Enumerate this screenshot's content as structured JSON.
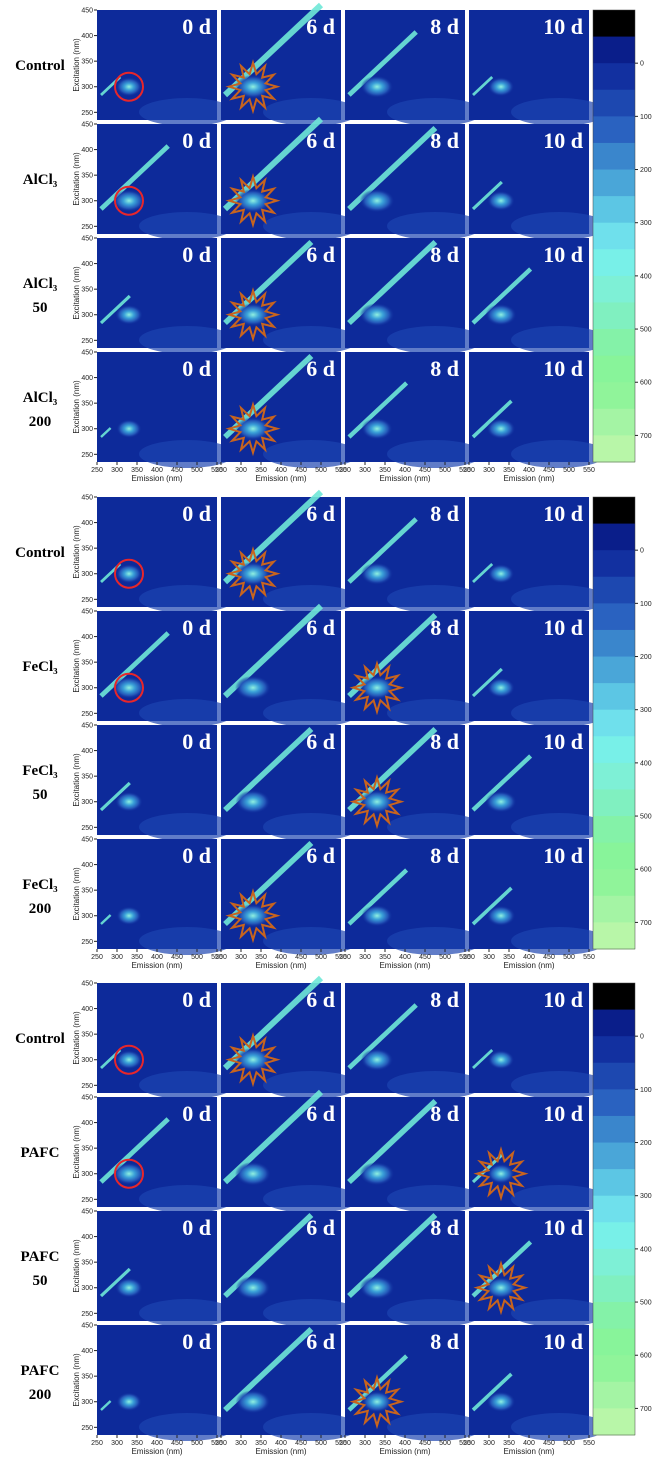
{
  "figure": {
    "panel_labels": [
      "0 d",
      "6 d",
      "8 d",
      "10 d"
    ],
    "x_label": "Emission (nm)",
    "y_label": "Excitation (nm)",
    "xticks": [
      250,
      300,
      350,
      400,
      450,
      500,
      550
    ],
    "yticks": [
      250,
      300,
      350,
      400,
      450
    ],
    "colorbar_ticks": [
      0,
      100,
      200,
      300,
      400,
      500,
      600,
      700
    ],
    "blocks": [
      {
        "rows": [
          [
            "Control"
          ],
          [
            "AlCl₃"
          ],
          [
            "AlCl₃",
            "50"
          ],
          [
            "AlCl₃",
            "200"
          ]
        ]
      },
      {
        "rows": [
          [
            "Control"
          ],
          [
            "FeCl₃"
          ],
          [
            "FeCl₃",
            "50"
          ],
          [
            "FeCl₃",
            "200"
          ]
        ]
      },
      {
        "rows": [
          [
            "Control"
          ],
          [
            "PAFC"
          ],
          [
            "PAFC",
            "50"
          ],
          [
            "PAFC",
            "200"
          ]
        ]
      }
    ]
  }
}
